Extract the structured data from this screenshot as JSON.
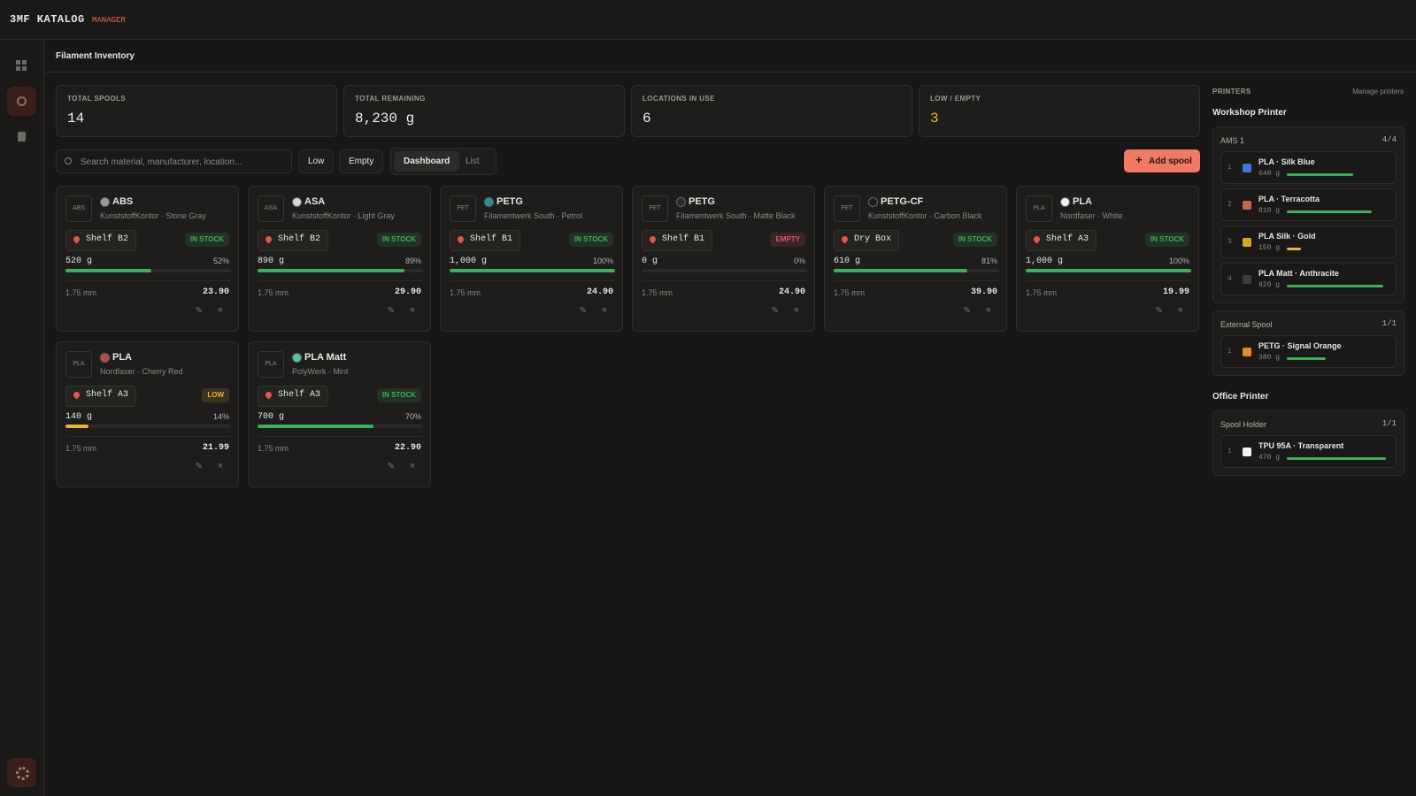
{
  "app": {
    "brand": "3MF KATALOG",
    "brand_sub": "MANAGER"
  },
  "page": {
    "title": "Filament Inventory"
  },
  "stats": [
    {
      "label": "TOTAL SPOOLS",
      "value": "14"
    },
    {
      "label": "TOTAL REMAINING",
      "value": "8,230 g"
    },
    {
      "label": "LOCATIONS IN USE",
      "value": "6"
    },
    {
      "label": "LOW / EMPTY",
      "value": "3",
      "color": "#e9b53b"
    }
  ],
  "toolbar": {
    "search_placeholder": "Search material, manufacturer, location...",
    "filters": [
      "Low",
      "Empty"
    ],
    "views": [
      "Dashboard",
      "List"
    ],
    "add": "Add spool"
  },
  "spools": [
    {
      "code": "ABS",
      "material": "ABS",
      "color": "#9a9a9a",
      "maker": "KunststoffKontor · Stone Gray",
      "location": "Shelf B2",
      "status": "IN STOCK",
      "status_color": "#3fae5a",
      "weight": "520 g",
      "percent": "52%",
      "fill": 52,
      "bar_color": "#3fae5a",
      "diameter": "1.75 mm",
      "price": "23.90"
    },
    {
      "code": "ASA",
      "material": "ASA",
      "color": "#d8d8d8",
      "maker": "KunststoffKontor · Light Gray",
      "location": "Shelf B2",
      "status": "IN STOCK",
      "status_color": "#3fae5a",
      "weight": "890 g",
      "percent": "89%",
      "fill": 89,
      "bar_color": "#3fae5a",
      "diameter": "1.75 mm",
      "price": "29.90"
    },
    {
      "code": "PET",
      "material": "PETG",
      "color": "#2b8aa0",
      "maker": "Filamentwerk South · Petrol",
      "location": "Shelf B1",
      "status": "IN STOCK",
      "status_color": "#3fae5a",
      "weight": "1,000 g",
      "percent": "100%",
      "fill": 100,
      "bar_color": "#3fae5a",
      "diameter": "1.75 mm",
      "price": "24.90"
    },
    {
      "code": "PET",
      "material": "PETG",
      "color": "#2a2a2a",
      "maker": "Filamentwerk South · Matte Black",
      "location": "Shelf B1",
      "status": "EMPTY",
      "status_color": "#e0566a",
      "weight": "0 g",
      "percent": "0%",
      "fill": 0,
      "bar_color": "#3fae5a",
      "diameter": "1.75 mm",
      "price": "24.90"
    },
    {
      "code": "PET",
      "material": "PETG-CF",
      "color": "#1b1b1b",
      "maker": "KunststoffKontor · Carbon Black",
      "location": "Dry Box",
      "status": "IN STOCK",
      "status_color": "#3fae5a",
      "weight": "610 g",
      "percent": "81%",
      "fill": 81,
      "bar_color": "#3fae5a",
      "diameter": "1.75 mm",
      "price": "39.90"
    },
    {
      "code": "PLA",
      "material": "PLA",
      "color": "#f2f2f2",
      "maker": "Nordfaser · White",
      "location": "Shelf A3",
      "status": "IN STOCK",
      "status_color": "#3fae5a",
      "weight": "1,000 g",
      "percent": "100%",
      "fill": 100,
      "bar_color": "#3fae5a",
      "diameter": "1.75 mm",
      "price": "19.99"
    },
    {
      "code": "PLA",
      "material": "PLA",
      "color": "#c0453f",
      "maker": "Nordfaser · Cherry Red",
      "location": "Shelf A3",
      "status": "LOW",
      "status_color": "#e9b53b",
      "weight": "140 g",
      "percent": "14%",
      "fill": 14,
      "bar_color": "#e9b53b",
      "diameter": "1.75 mm",
      "price": "21.99"
    },
    {
      "code": "PLA",
      "material": "PLA Matt",
      "color": "#4fc49a",
      "maker": "PolyWerk · Mint",
      "location": "Shelf A3",
      "status": "IN STOCK",
      "status_color": "#3fae5a",
      "weight": "700 g",
      "percent": "70%",
      "fill": 70,
      "bar_color": "#3fae5a",
      "diameter": "1.75 mm",
      "price": "22.90"
    }
  ],
  "printers": {
    "title": "PRINTERS",
    "manage": "Manage printers",
    "list": [
      {
        "name": "Workshop Printer",
        "units": [
          {
            "name": "AMS 1",
            "count": "4/4",
            "slots": [
              {
                "index": 1,
                "color": "#3a78d8",
                "name": "PLA · Silk Blue",
                "weight": "640 g",
                "fill": 67,
                "bar_color": "#3fae5a"
              },
              {
                "index": 2,
                "color": "#c8664a",
                "name": "PLA · Terracotta",
                "weight": "810 g",
                "fill": 86,
                "bar_color": "#3fae5a"
              },
              {
                "index": 3,
                "color": "#d9a82a",
                "name": "PLA Silk · Gold",
                "weight": "150 g",
                "fill": 14,
                "bar_color": "#e9b53b"
              },
              {
                "index": 4,
                "color": "#3c3c3c",
                "name": "PLA Matt · Anthracite",
                "weight": "920 g",
                "fill": 97,
                "bar_color": "#3fae5a"
              }
            ]
          },
          {
            "name": "External Spool",
            "count": "1/1",
            "slots": [
              {
                "index": 1,
                "color": "#e8892f",
                "name": "PETG · Signal Orange",
                "weight": "380 g",
                "fill": 39,
                "bar_color": "#3fae5a"
              }
            ]
          }
        ]
      },
      {
        "name": "Office Printer",
        "units": [
          {
            "name": "Spool Holder",
            "count": "1/1",
            "slots": [
              {
                "index": 1,
                "color": "#f2f2f2",
                "name": "TPU 95A · Transparent",
                "weight": "470 g",
                "fill": 100,
                "bar_color": "#3fae5a"
              }
            ]
          }
        ]
      }
    ]
  }
}
